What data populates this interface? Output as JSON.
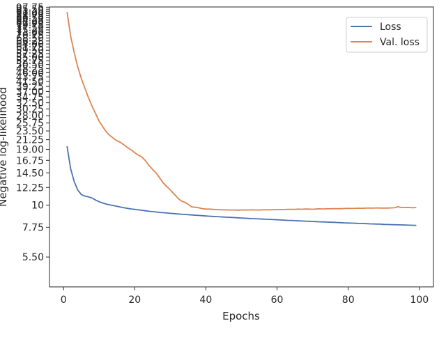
{
  "chart_data": {
    "type": "line",
    "xlabel": "Epochs",
    "ylabel": "Negative log-likelihood",
    "xlim": [
      -3.95,
      103.95
    ],
    "ylim": [
      3.9,
      98.0
    ],
    "yscale": "log",
    "grid": false,
    "legend_position": "top-right",
    "x_ticks": [
      0,
      20,
      40,
      60,
      80,
      100
    ],
    "x_tick_labels": [
      "0",
      "20",
      "40",
      "60",
      "80",
      "100"
    ],
    "y_ticks": [
      5.5,
      7.75,
      10,
      12.25,
      14.5,
      16.75,
      19.0,
      21.25,
      23.5,
      25.75,
      28.0,
      30.25,
      32.5,
      34.75,
      37.0,
      39.25,
      41.5,
      43.75,
      46.0,
      48.25,
      50.5,
      52.75,
      55.0,
      57.25,
      59.5,
      61.75,
      64.0,
      66.25,
      68.5,
      70.75,
      73.0,
      75.25,
      77.5,
      79.75,
      82.0,
      84.25,
      86.5,
      88.75,
      91.0,
      93.25,
      95.5,
      97.75
    ],
    "y_tick_labels": [
      "5.50",
      "7.75",
      "10",
      "12.25",
      "14.50",
      "16.75",
      "19.00",
      "21.25",
      "23.50",
      "25.75",
      "28.00",
      "30.25",
      "32.50",
      "34.75",
      "37.00",
      "39.25",
      "41.50",
      "43.75",
      "46.00",
      "48.25",
      "50.50",
      "52.75",
      "55.00",
      "57.25",
      "59.50",
      "61.75",
      "64.00",
      "66.25",
      "68.50",
      "70.75",
      "73.00",
      "75.25",
      "77.50",
      "79.75",
      "82.00",
      "84.25",
      "86.50",
      "88.75",
      "91.00",
      "93.25",
      "95.50",
      "97.75"
    ],
    "x": [
      1,
      2,
      3,
      4,
      5,
      6,
      7,
      8,
      9,
      10,
      11,
      12,
      13,
      14,
      15,
      16,
      17,
      18,
      19,
      20,
      21,
      22,
      23,
      24,
      25,
      26,
      27,
      28,
      29,
      30,
      31,
      32,
      33,
      34,
      35,
      36,
      37,
      38,
      39,
      40,
      41,
      42,
      43,
      44,
      45,
      46,
      47,
      48,
      49,
      50,
      51,
      52,
      53,
      54,
      55,
      56,
      57,
      58,
      59,
      60,
      61,
      62,
      63,
      64,
      65,
      66,
      67,
      68,
      69,
      70,
      71,
      72,
      73,
      74,
      75,
      76,
      77,
      78,
      79,
      80,
      81,
      82,
      83,
      84,
      85,
      86,
      87,
      88,
      89,
      90,
      91,
      92,
      93,
      94,
      95,
      96,
      97,
      98,
      99
    ],
    "series": [
      {
        "name": "Loss",
        "color": "#4c72b0",
        "values": [
          19.6,
          15.2,
          13.1,
          11.9,
          11.3,
          11.1,
          11.0,
          10.85,
          10.6,
          10.4,
          10.25,
          10.12,
          10.02,
          9.95,
          9.86,
          9.78,
          9.7,
          9.63,
          9.57,
          9.52,
          9.47,
          9.42,
          9.37,
          9.32,
          9.27,
          9.24,
          9.2,
          9.16,
          9.13,
          9.1,
          9.07,
          9.04,
          9.01,
          8.98,
          8.96,
          8.93,
          8.9,
          8.88,
          8.85,
          8.82,
          8.8,
          8.78,
          8.76,
          8.74,
          8.72,
          8.7,
          8.68,
          8.66,
          8.64,
          8.62,
          8.6,
          8.58,
          8.56,
          8.55,
          8.53,
          8.51,
          8.5,
          8.48,
          8.46,
          8.44,
          8.43,
          8.41,
          8.39,
          8.38,
          8.36,
          8.34,
          8.33,
          8.31,
          8.3,
          8.28,
          8.27,
          8.25,
          8.24,
          8.22,
          8.21,
          8.2,
          8.18,
          8.17,
          8.15,
          8.14,
          8.13,
          8.11,
          8.1,
          8.09,
          8.08,
          8.06,
          8.05,
          8.04,
          8.03,
          8.01,
          8.0,
          7.99,
          7.98,
          7.97,
          7.96,
          7.95,
          7.94,
          7.93,
          7.92
        ]
      },
      {
        "name": "Val. loss",
        "color": "#dd8452",
        "values": [
          92.0,
          70.0,
          58.0,
          49.0,
          43.0,
          38.5,
          34.5,
          31.3,
          28.7,
          26.3,
          24.7,
          23.3,
          22.3,
          21.6,
          21.0,
          20.6,
          20.0,
          19.4,
          18.9,
          18.3,
          17.8,
          17.4,
          16.7,
          15.8,
          15.1,
          14.5,
          13.7,
          12.9,
          12.4,
          11.9,
          11.4,
          10.9,
          10.5,
          10.35,
          10.1,
          9.8,
          9.75,
          9.7,
          9.6,
          9.55,
          9.55,
          9.52,
          9.5,
          9.48,
          9.47,
          9.46,
          9.45,
          9.45,
          9.44,
          9.45,
          9.46,
          9.45,
          9.47,
          9.46,
          9.45,
          9.47,
          9.48,
          9.47,
          9.48,
          9.5,
          9.51,
          9.5,
          9.52,
          9.53,
          9.52,
          9.55,
          9.54,
          9.56,
          9.55,
          9.54,
          9.56,
          9.58,
          9.57,
          9.59,
          9.58,
          9.6,
          9.61,
          9.6,
          9.62,
          9.63,
          9.62,
          9.64,
          9.65,
          9.64,
          9.66,
          9.67,
          9.66,
          9.68,
          9.67,
          9.66,
          9.67,
          9.68,
          9.7,
          9.82,
          9.72,
          9.73,
          9.74,
          9.7,
          9.72
        ]
      }
    ]
  }
}
